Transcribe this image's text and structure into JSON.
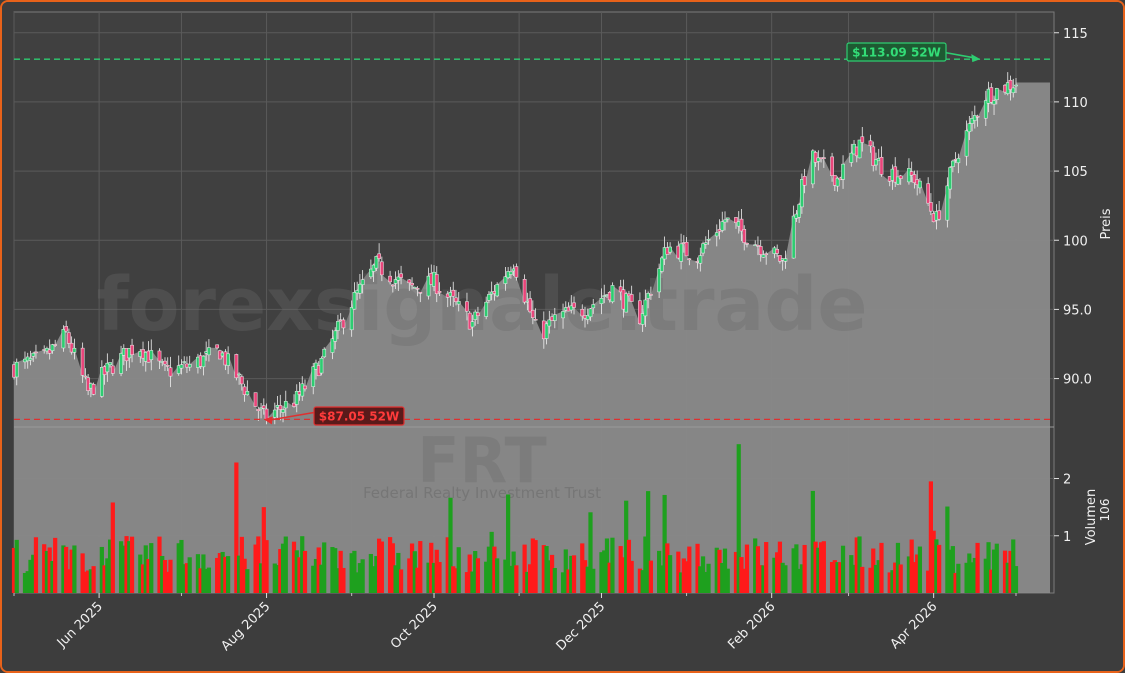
{
  "chart_data": {
    "type": "candlestick",
    "ticker": "FRT",
    "company": "Federal Realty Investment Trust",
    "watermark": "forexsignale.trade",
    "ylabel_price": "Preis",
    "ylabel_volume": "Volumen",
    "volume_multiplier": "10^6",
    "price_ylim": [
      86.5,
      116.5
    ],
    "price_ticks": [
      "90.0",
      "95.0",
      "100",
      "105",
      "110",
      "115"
    ],
    "price_tick_values": [
      90,
      95,
      100,
      105,
      110,
      115
    ],
    "volume_ylim": [
      0,
      2.9
    ],
    "volume_ticks": [
      "1",
      "2"
    ],
    "volume_tick_values": [
      1,
      2
    ],
    "x_ticks": [
      "Jun 2025",
      "Aug 2025",
      "Oct 2025",
      "Dec 2025",
      "Feb 2026",
      "Apr 2026"
    ],
    "date_start": "2025-05-01",
    "date_end": "2026-05-01",
    "high_52w": {
      "label": "$113.09 52W",
      "value": 113.09,
      "date": "2026-04-18",
      "color": "#2ecc71"
    },
    "low_52w": {
      "label": "$87.05 52W",
      "value": 87.05,
      "date": "2025-07-31",
      "color": "#e03030"
    },
    "last_close": 111.4,
    "anchors": [
      [
        "2025-05-01",
        90.8
      ],
      [
        "2025-05-12",
        91.5
      ],
      [
        "2025-05-20",
        93.2
      ],
      [
        "2025-05-28",
        89.0
      ],
      [
        "2025-06-05",
        90.8
      ],
      [
        "2025-06-15",
        92.5
      ],
      [
        "2025-06-25",
        90.5
      ],
      [
        "2025-07-05",
        91.0
      ],
      [
        "2025-07-15",
        92.0
      ],
      [
        "2025-07-31",
        87.2
      ],
      [
        "2025-08-12",
        88.5
      ],
      [
        "2025-08-22",
        91.5
      ],
      [
        "2025-09-01",
        95.5
      ],
      [
        "2025-09-10",
        98.2
      ],
      [
        "2025-09-22",
        96.5
      ],
      [
        "2025-10-01",
        97.0
      ],
      [
        "2025-10-15",
        94.0
      ],
      [
        "2025-10-30",
        98.5
      ],
      [
        "2025-11-08",
        93.0
      ],
      [
        "2025-11-15",
        94.5
      ],
      [
        "2025-11-25",
        95.0
      ],
      [
        "2025-12-05",
        96.5
      ],
      [
        "2025-12-15",
        94.5
      ],
      [
        "2025-12-25",
        99.5
      ],
      [
        "2026-01-05",
        99.0
      ],
      [
        "2026-01-15",
        101.5
      ],
      [
        "2026-01-25",
        100.0
      ],
      [
        "2026-02-05",
        98.5
      ],
      [
        "2026-02-15",
        106.0
      ],
      [
        "2026-02-25",
        104.5
      ],
      [
        "2026-03-05",
        107.0
      ],
      [
        "2026-03-15",
        105.0
      ],
      [
        "2026-03-25",
        104.5
      ],
      [
        "2026-04-02",
        101.5
      ],
      [
        "2026-04-10",
        106.5
      ],
      [
        "2026-04-20",
        110.5
      ],
      [
        "2026-04-28",
        111.2
      ],
      [
        "2026-05-01",
        111.4
      ]
    ]
  }
}
